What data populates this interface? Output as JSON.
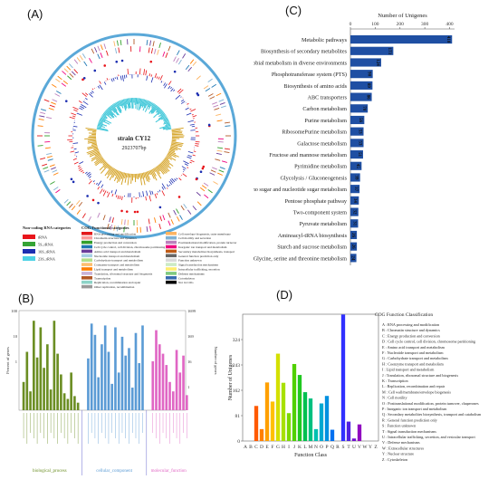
{
  "panels": {
    "a": "(A)",
    "b": "(B)",
    "c": "(C)",
    "d": "(D)"
  },
  "genome_map": {
    "center_label": "strain CY12",
    "center_size": "2923707bp",
    "legend_rna_title": "Non-coding RNA categories",
    "rna_items": [
      {
        "label": "tRNA",
        "color": "#e8151b"
      },
      {
        "label": "5S_rRNA",
        "color": "#36a436"
      },
      {
        "label": "16S_rRNA",
        "color": "#1d2fb1"
      },
      {
        "label": "23S_rRNA",
        "color": "#4fd2e6"
      }
    ],
    "legend_cog_title": "COG Functional categories",
    "cog_items_left": [
      {
        "label": "RNA processing and modification",
        "color": "#e31a1c"
      },
      {
        "label": "Chromatin structure and dynamics",
        "color": "#fb9a99"
      },
      {
        "label": "Energy production and conversion",
        "color": "#33a02c"
      },
      {
        "label": "Cell cycle control, cell division, chromosome partitioning",
        "color": "#1f78b4"
      },
      {
        "label": "Amino acid transport and metabolism",
        "color": "#6a3d9a"
      },
      {
        "label": "Nucleotide transport and metabolism",
        "color": "#a6cee3"
      },
      {
        "label": "Carbohydrate transport and metabolism",
        "color": "#b2df8a"
      },
      {
        "label": "Coenzyme transport and metabolism",
        "color": "#fdbf6f"
      },
      {
        "label": "Lipid transport and metabolism",
        "color": "#ff7f00"
      },
      {
        "label": "Translation, ribosomal structure and biogenesis",
        "color": "#cab2d6"
      },
      {
        "label": "Transcription",
        "color": "#b15928"
      },
      {
        "label": "Replication, recombination and repair",
        "color": "#8dd3c7"
      },
      {
        "label": "Other replication, recombination",
        "color": "#999999"
      }
    ],
    "cog_items_right": [
      {
        "label": "Cell envelope biogenesis, outer membrane",
        "color": "#fdb462"
      },
      {
        "label": "Cell motility and secretion",
        "color": "#80b1d3"
      },
      {
        "label": "Posttranslational modification, protein turnover",
        "color": "#bc80bd"
      },
      {
        "label": "Inorganic ion transport and metabolism",
        "color": "#f0027f"
      },
      {
        "label": "Secondary metabolites biosynthesis, transport",
        "color": "#bf5b17"
      },
      {
        "label": "General function prediction only",
        "color": "#666666"
      },
      {
        "label": "Function unknown",
        "color": "#d9d9d9"
      },
      {
        "label": "Signal transduction mechanisms",
        "color": "#ccebc5"
      },
      {
        "label": "Intracellular trafficking, secretion",
        "color": "#ffed6f"
      },
      {
        "label": "Defense mechanisms",
        "color": "#7fc97f"
      },
      {
        "label": "Cytoskeleton",
        "color": "#386cb0"
      },
      {
        "label": "Not in COG",
        "color": "#000000"
      }
    ]
  },
  "chart_data": [
    {
      "panel": "C",
      "type": "bar",
      "orientation": "horizontal",
      "xlabel": "Number of Unigenes",
      "xlim": [
        0,
        420
      ],
      "xticks": [
        0,
        100,
        200,
        300,
        400
      ],
      "bar_color": "#1f4fa3",
      "categories": [
        "Metabolic pathways",
        "Biosynthesis of secondary metabolites",
        "Microbial metabolism in diverse environments",
        "Phosphotransferase system (PTS)",
        "Biosynthesis of amino acids",
        "ABC transporters",
        "Carbon metabolism",
        "Purine metabolism",
        "RibosomePurine metabolism",
        "Galactose metabolism",
        "Fructose and mannose metabolism",
        "Pyrimidine metabolism",
        "Glycolysis / Gluconeogenesis",
        "Amino sugar and nucleotide sugar metabolism",
        "Pentose phosphate pathway",
        "Two-component system",
        "Pyruvate metabolism",
        "Aminoacyl-tRNA biosynthesis",
        "Starch and sucrose metabolism",
        "Glycine, serine and threonine metabolism"
      ],
      "values": [
        410,
        173,
        124,
        90,
        89,
        86,
        70,
        56,
        53,
        53,
        51,
        45,
        39,
        37,
        34,
        32,
        31,
        26,
        26,
        24
      ]
    },
    {
      "panel": "D",
      "type": "bar",
      "title": "COG Function Classification",
      "xlabel": "Function Class",
      "ylabel": "Number of Unigenes",
      "ylim": [
        0,
        405
      ],
      "yticks": [
        0,
        81,
        162,
        243,
        324
      ],
      "categories": [
        "A",
        "B",
        "C",
        "D",
        "E",
        "F",
        "G",
        "H",
        "I",
        "J",
        "K",
        "L",
        "M",
        "N",
        "O",
        "P",
        "Q",
        "R",
        "S",
        "T",
        "U",
        "V",
        "W",
        "Y",
        "Z"
      ],
      "values": [
        0,
        0,
        112,
        38,
        187,
        126,
        279,
        186,
        89,
        246,
        211,
        156,
        136,
        38,
        120,
        144,
        36,
        0,
        404,
        62,
        8,
        53,
        0,
        0,
        0
      ],
      "colors": [
        "#ff0000",
        "#ff3a00",
        "#ff5a00",
        "#ff8000",
        "#ffa000",
        "#ffc000",
        "#d4e000",
        "#a8e000",
        "#7cd800",
        "#50d000",
        "#20c820",
        "#00c050",
        "#00c080",
        "#00c0b0",
        "#00a8d0",
        "#0090e0",
        "#0070f0",
        "#1848f0",
        "#3030ff",
        "#5020e0",
        "#7010d0",
        "#9008c0",
        "#a800b0",
        "#c000a0",
        "#d00090"
      ],
      "legend": [
        "A : RNA processing and modification",
        "B : Chromatin structure and dynamics",
        "C : Energy production and conversion",
        "D : Cell cycle control, cell division, chromosome partitioning",
        "E : Amino acid transport and metabolism",
        "F : Nucleotide transport and metabolism",
        "G : Carbohydrate transport and metabolism",
        "H : Coenzyme transport and metabolism",
        "I : Lipid transport and metabolism",
        "J : Translation, ribosomal structure and biogenesis",
        "K : Transcription",
        "L : Replication, recombination and repair",
        "M : Cell wall/membrane/envelope biogenesis",
        "N : Cell motility",
        "O : Posttranslational modification, protein turnover, chaperones",
        "P : Inorganic ion transport and metabolism",
        "Q : Secondary metabolites biosynthesis, transport and catabolism",
        "R : General function prediction only",
        "S : Function unknown",
        "T : Signal transduction mechanisms",
        "U : Intracellular trafficking, secretion, and vesicular transport",
        "V : Defense mechanisms",
        "W : Extracellular structures",
        "Y : Nuclear structure",
        "Z : Cytoskeleton"
      ]
    },
    {
      "panel": "B",
      "type": "bar",
      "ylabel_left": "Percent of genes",
      "ylabel_right": "Number of genes",
      "yticks_left": [
        "100",
        "10",
        "1"
      ],
      "yticks_right": [
        "1699",
        "169",
        "16",
        "1"
      ],
      "groups": [
        {
          "label": "biological_process",
          "color": "#6b8e23",
          "values": [
            30,
            62,
            20,
            95,
            56,
            88,
            45,
            70,
            22,
            95,
            60,
            38,
            18,
            12,
            40,
            15,
            8
          ]
        },
        {
          "label": "cellular_component",
          "color": "#5b9bd5",
          "values": [
            55,
            92,
            80,
            35,
            70,
            90,
            62,
            28,
            88,
            40,
            78,
            58,
            66,
            24,
            82,
            50,
            90
          ]
        },
        {
          "label": "molecular_function",
          "color": "#e066c4",
          "values": [
            52,
            85,
            70,
            60,
            48,
            30,
            20,
            64,
            40,
            58,
            16
          ]
        }
      ]
    }
  ]
}
